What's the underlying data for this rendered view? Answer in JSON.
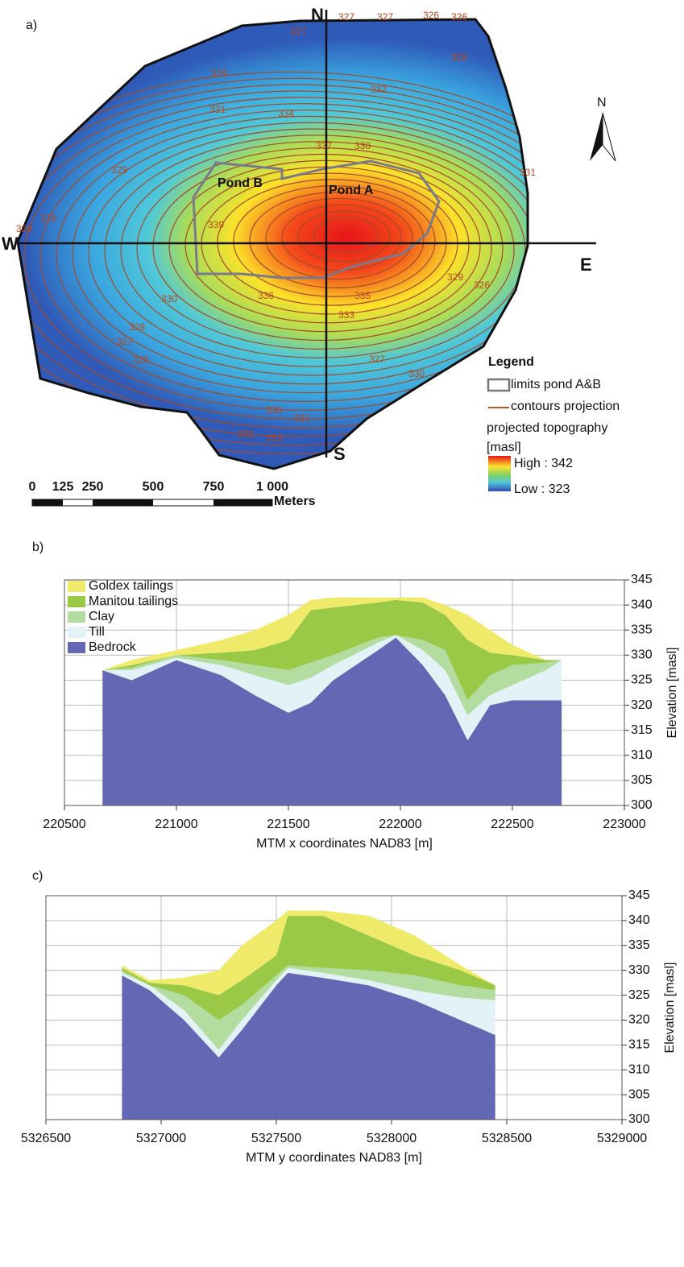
{
  "map": {
    "label": "a)",
    "directions": {
      "north": "N",
      "south": "S",
      "west": "W",
      "east": "E"
    },
    "ponds": [
      "Pond A",
      "Pond B"
    ],
    "contour_labels": [
      327,
      327,
      327,
      326,
      326,
      328,
      328,
      332,
      334,
      331,
      337,
      338,
      329,
      331,
      328,
      328,
      339,
      330,
      336,
      335,
      333,
      328,
      327,
      326,
      327,
      330,
      330,
      331,
      332,
      333,
      326,
      329
    ],
    "north_arrow": "N",
    "legend": {
      "title": "Legend",
      "items": [
        "limits pond A&B",
        "contours projection"
      ],
      "topography": "projected topography",
      "unit": "[masl]",
      "high": "High : 342",
      "low": "Low : 323"
    },
    "scale_bar": {
      "ticks": [
        "0",
        "125",
        "250",
        "500",
        "750",
        "1 000"
      ],
      "unit": "Meters"
    }
  },
  "chart_data": [
    {
      "type": "area",
      "title": "b)",
      "x_label": "MTM x coordinates NAD83 [m]",
      "y_label": "Elevation [masl]",
      "xlim": [
        220500,
        223000
      ],
      "xticks": [
        220500,
        221000,
        221500,
        222000,
        222500,
        223000
      ],
      "ylim": [
        300,
        345
      ],
      "yticks": [
        300,
        305,
        310,
        315,
        320,
        325,
        330,
        335,
        340,
        345
      ],
      "grid": true,
      "legend": "upper left",
      "x": [
        220670,
        220800,
        221000,
        221200,
        221350,
        221500,
        221600,
        221700,
        221900,
        221980,
        222100,
        222200,
        222300,
        222400,
        222500,
        222650,
        222720
      ],
      "series": [
        {
          "name": "Bedrock",
          "color": "#6468b4",
          "values": [
            327,
            325,
            329,
            326,
            322,
            318.5,
            320.5,
            325,
            331,
            333.5,
            328,
            322,
            313,
            320,
            321,
            321,
            321
          ]
        },
        {
          "name": "Till",
          "color": "#e2f2f6",
          "values": [
            0,
            2,
            0.5,
            2,
            4,
            5.5,
            5,
            3,
            1.5,
            0.5,
            3,
            5,
            5,
            2,
            3,
            6,
            8
          ]
        },
        {
          "name": "Clay",
          "color": "#b2dca0",
          "values": [
            0,
            0.5,
            0.5,
            1,
            2,
            3,
            3,
            2,
            1,
            0,
            2,
            4,
            3,
            4,
            4,
            1.5,
            0
          ]
        },
        {
          "name": "Manitou tailings",
          "color": "#9ac948",
          "values": [
            0,
            0.5,
            0,
            1.5,
            3,
            6,
            10.5,
            9.5,
            7,
            7,
            7.5,
            7,
            12,
            4.5,
            2,
            0.5,
            0
          ]
        },
        {
          "name": "Goldex tailings",
          "color": "#efea6a",
          "values": [
            0,
            1,
            1,
            2.5,
            4,
            5,
            2,
            2,
            1,
            0.5,
            1,
            2,
            5,
            4.5,
            2,
            0,
            0
          ]
        }
      ]
    },
    {
      "type": "area",
      "title": "c)",
      "x_label": "MTM y coordinates NAD83 [m]",
      "y_label": "Elevation [masl]",
      "xlim": [
        5326500,
        5329000
      ],
      "xticks": [
        5326500,
        5327000,
        5327500,
        5328000,
        5328500,
        5329000
      ],
      "ylim": [
        300,
        345
      ],
      "yticks": [
        300,
        305,
        310,
        315,
        320,
        325,
        330,
        335,
        340,
        345
      ],
      "grid": true,
      "x": [
        5326830,
        5326950,
        5327100,
        5327250,
        5327350,
        5327500,
        5327550,
        5327700,
        5327900,
        5328100,
        5328300,
        5328450
      ],
      "series": [
        {
          "color": "#6468b4",
          "values": [
            329,
            326,
            320,
            312.5,
            318,
            327,
            329.5,
            328.5,
            327,
            324,
            320,
            317
          ]
        },
        {
          "color": "#e2f2f6",
          "values": [
            0.5,
            1,
            2,
            1.5,
            2,
            1,
            1,
            1,
            1,
            2,
            4.5,
            7
          ]
        },
        {
          "color": "#b2dca0",
          "values": [
            0.5,
            0,
            3,
            6,
            3,
            1,
            0.5,
            1,
            2,
            3,
            2.5,
            2
          ]
        },
        {
          "color": "#9ac948",
          "values": [
            0.5,
            0.5,
            2,
            5,
            5,
            4,
            10,
            10.5,
            7,
            4,
            3,
            1
          ]
        },
        {
          "color": "#efea6a",
          "values": [
            0.5,
            0.5,
            1.5,
            5,
            7,
            7,
            1,
            1,
            4,
            4,
            1,
            0
          ]
        }
      ]
    }
  ]
}
